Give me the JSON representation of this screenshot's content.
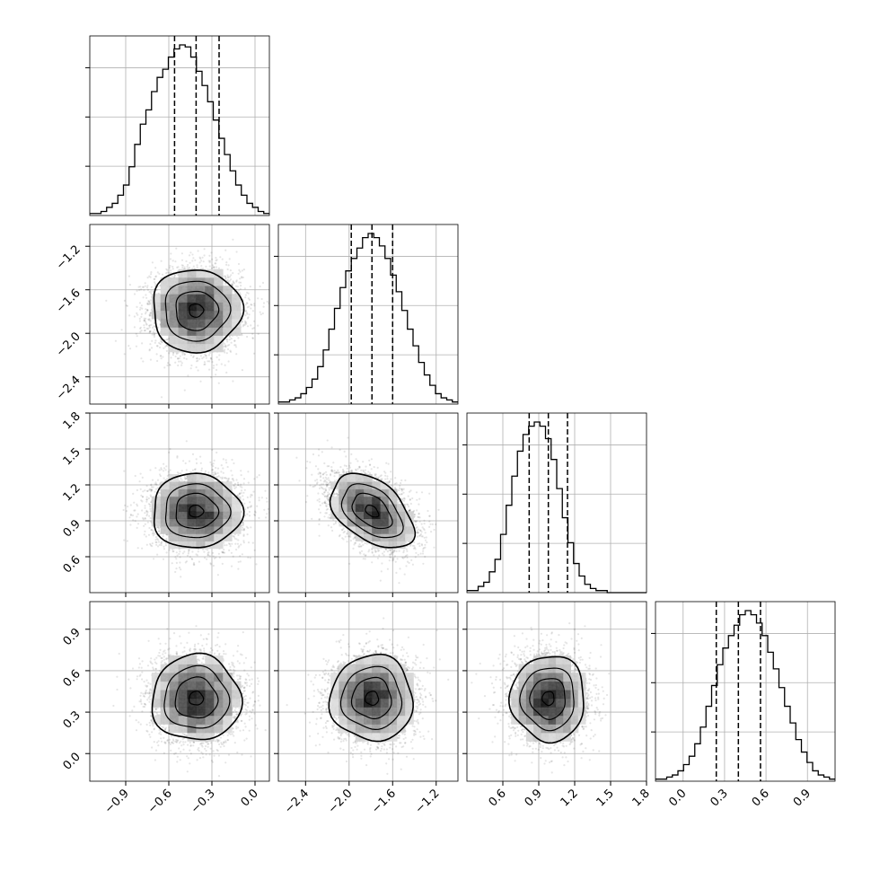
{
  "chart_data": {
    "type": "corner",
    "parameters": [
      {
        "range": [
          -1.15,
          0.1
        ],
        "ticks": [
          -0.9,
          -0.6,
          -0.3,
          0.0
        ],
        "tick_labels": [
          "−0.9",
          "−0.6",
          "−0.3",
          "0.0"
        ],
        "quantiles": [
          -0.56,
          -0.41,
          -0.25
        ],
        "center": -0.41,
        "sd": 0.155,
        "hist_counts": [
          1,
          1,
          2,
          4,
          6,
          10,
          15,
          24,
          35,
          45,
          52,
          61,
          68,
          72,
          78,
          82,
          84,
          83,
          78,
          71,
          64,
          56,
          47,
          38,
          30,
          22,
          15,
          10,
          6,
          4,
          2,
          1
        ]
      },
      {
        "range": [
          -2.65,
          -1.0
        ],
        "ticks": [
          -2.4,
          -2.0,
          -1.6,
          -1.2
        ],
        "tick_labels": [
          "−2.4",
          "−2.0",
          "−1.6",
          "−1.2"
        ],
        "quantiles": [
          -1.98,
          -1.79,
          -1.6
        ],
        "center": -1.79,
        "sd": 0.19,
        "hist_counts": [
          1,
          1,
          2,
          3,
          5,
          8,
          12,
          18,
          26,
          36,
          46,
          56,
          64,
          70,
          75,
          80,
          82,
          80,
          76,
          70,
          62,
          54,
          45,
          36,
          28,
          20,
          14,
          9,
          5,
          3,
          2,
          1
        ]
      },
      {
        "range": [
          0.3,
          1.8
        ],
        "ticks": [
          0.6,
          0.9,
          1.2,
          1.5,
          1.8
        ],
        "tick_labels": [
          "0.6",
          "0.9",
          "1.2",
          "1.5",
          "1.8"
        ],
        "quantiles": [
          0.82,
          0.98,
          1.14
        ],
        "center": 0.98,
        "sd": 0.155,
        "hist_counts": [
          1,
          1,
          3,
          5,
          10,
          16,
          28,
          42,
          56,
          68,
          76,
          80,
          82,
          80,
          74,
          64,
          50,
          36,
          24,
          14,
          8,
          4,
          2,
          1,
          1,
          0,
          0,
          0,
          0,
          0,
          0,
          0
        ]
      },
      {
        "range": [
          -0.2,
          1.1
        ],
        "ticks": [
          0.0,
          0.3,
          0.6,
          0.9
        ],
        "tick_labels": [
          "0.0",
          "0.3",
          "0.6",
          "0.9"
        ],
        "quantiles": [
          0.24,
          0.4,
          0.56
        ],
        "center": 0.4,
        "sd": 0.155,
        "hist_counts": [
          1,
          1,
          2,
          3,
          5,
          8,
          12,
          18,
          26,
          36,
          46,
          56,
          64,
          70,
          75,
          80,
          82,
          80,
          76,
          70,
          62,
          54,
          45,
          36,
          28,
          20,
          14,
          9,
          5,
          3,
          2,
          1
        ]
      }
    ],
    "correlations": [
      [
        1,
        0,
        0,
        0
      ],
      [
        0,
        1,
        -0.45,
        0
      ],
      [
        0,
        -0.45,
        1,
        0
      ],
      [
        0,
        0,
        0,
        1
      ]
    ],
    "n_samples": 4000,
    "grid": true,
    "colors": {
      "line": "#000000",
      "quantile_line": "#000000",
      "grid": "#b0b0b0",
      "point": "#000000"
    }
  }
}
